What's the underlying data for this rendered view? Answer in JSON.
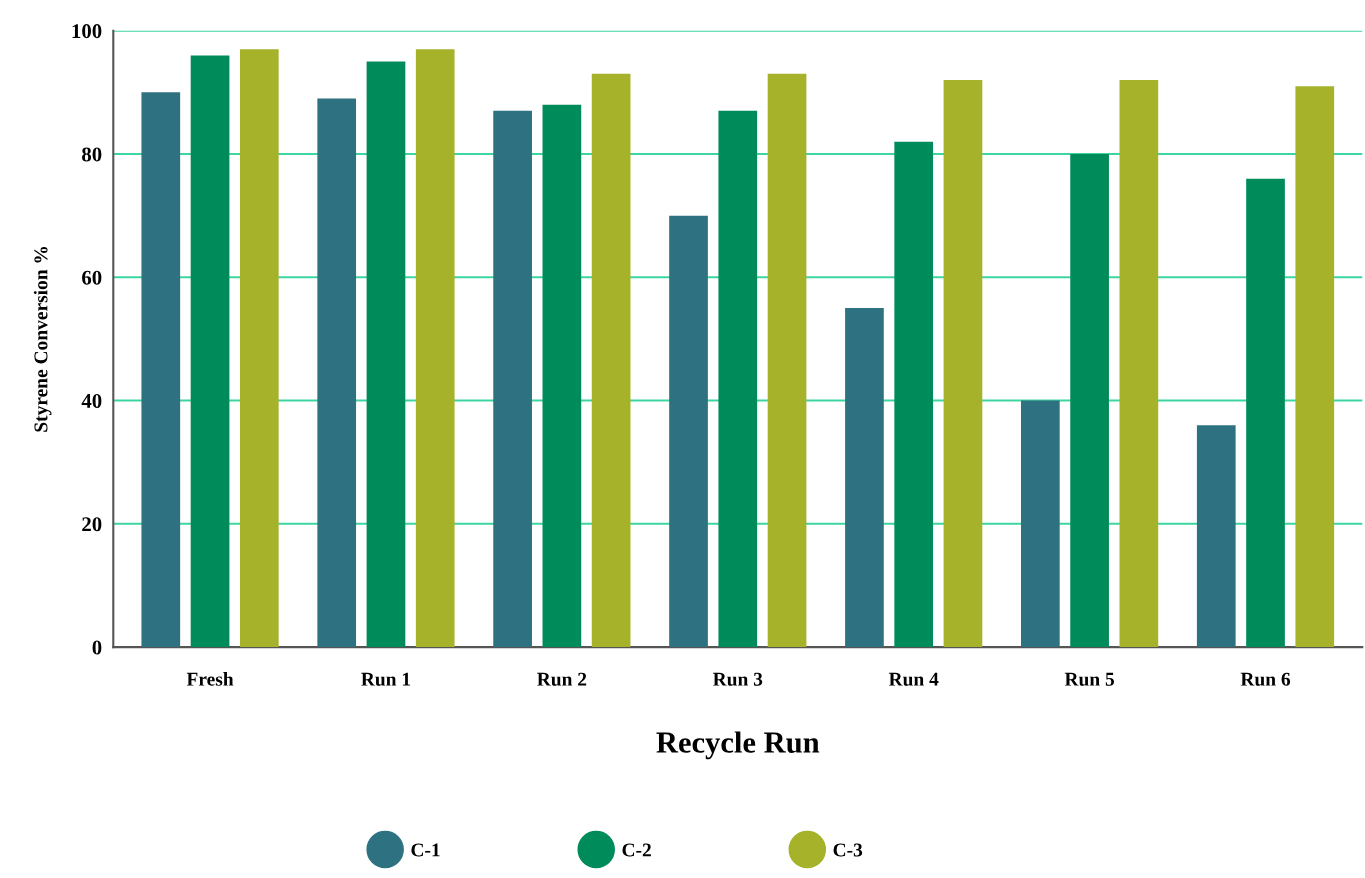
{
  "chart_data": {
    "type": "bar",
    "xlabel": "Recycle Run",
    "ylabel": "Styrene Conversion %",
    "categories": [
      "Fresh",
      "Run 1",
      "Run 2",
      "Run 3",
      "Run 4",
      "Run 5",
      "Run 6"
    ],
    "series": [
      {
        "name": "C-1",
        "color": "#2e7282",
        "values": [
          90,
          89,
          87,
          70,
          55,
          40,
          36
        ]
      },
      {
        "name": "C-2",
        "color": "#008c5a",
        "values": [
          96,
          95,
          88,
          87,
          82,
          80,
          76
        ]
      },
      {
        "name": "C-3",
        "color": "#a5b22a",
        "values": [
          97,
          97,
          93,
          93,
          92,
          92,
          91
        ]
      }
    ],
    "ylim": [
      0,
      100
    ],
    "yticks": [
      0,
      20,
      40,
      60,
      80,
      100
    ],
    "grid": "y",
    "legend": "bottom"
  }
}
